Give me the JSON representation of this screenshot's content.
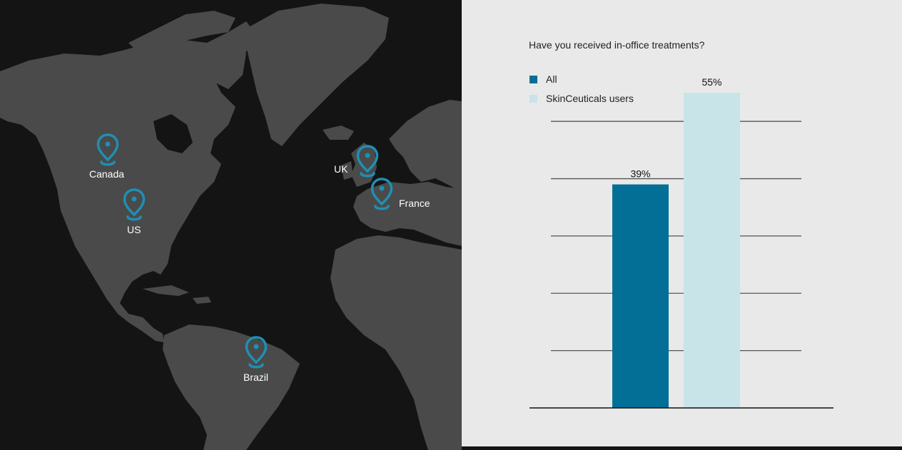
{
  "map": {
    "markers": [
      {
        "label": "Canada"
      },
      {
        "label": "US"
      },
      {
        "label": "UK"
      },
      {
        "label": "France"
      },
      {
        "label": "Brazil"
      }
    ],
    "marker_color": "#1f8fb3",
    "land_color": "#4a4a4a",
    "ocean_color": "#141414"
  },
  "chart_data": {
    "type": "bar",
    "title": "Have you received in-office treatments?",
    "categories": [
      "All",
      "SkinCeuticals users"
    ],
    "values": [
      39,
      55
    ],
    "data_labels": [
      "39%",
      "55%"
    ],
    "series_colors": [
      "#036f96",
      "#c9e4e8"
    ],
    "legend": [
      {
        "label": "All",
        "color": "#036f96"
      },
      {
        "label": "SkinCeuticals users",
        "color": "#c9e4e8"
      }
    ],
    "legend_position": "top-left",
    "ylim": [
      0,
      55
    ],
    "gridlines": [
      10,
      20,
      30,
      40,
      50
    ],
    "grid": true,
    "xlabel": "",
    "ylabel": ""
  }
}
